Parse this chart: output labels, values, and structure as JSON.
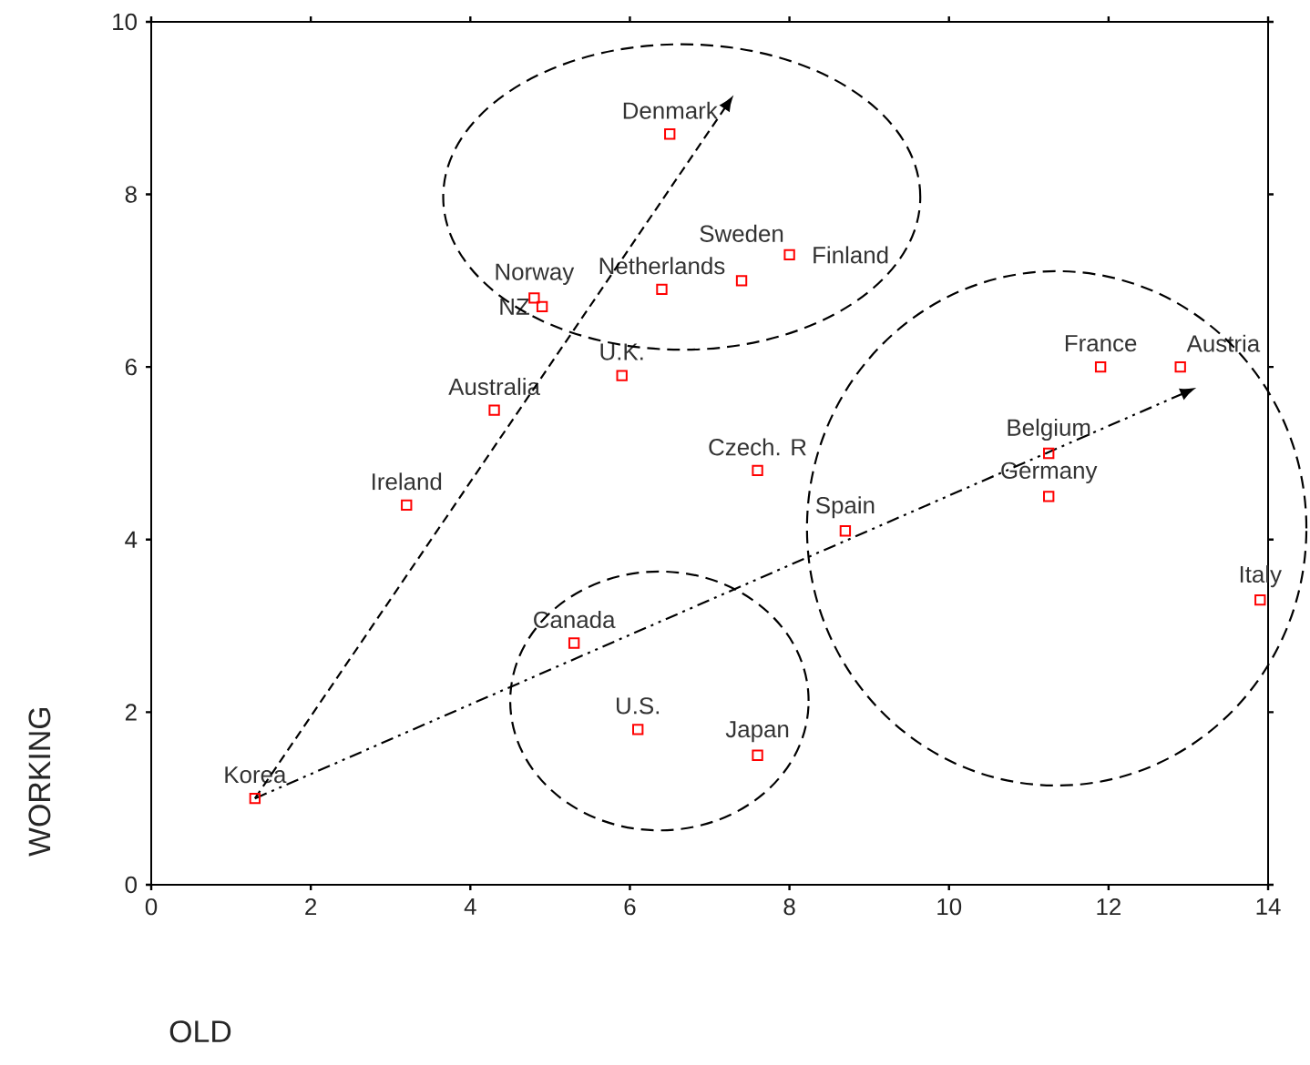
{
  "chart_data": {
    "type": "scatter",
    "xlabel": "OLD",
    "ylabel": "WORKING",
    "xlim": [
      0,
      14
    ],
    "ylim": [
      0,
      10
    ],
    "xticks": [
      0,
      2,
      4,
      6,
      8,
      10,
      12,
      14
    ],
    "yticks": [
      0,
      2,
      4,
      6,
      8,
      10
    ],
    "marker": "square",
    "series": [
      {
        "color": "#ff0000",
        "x": [
          6.5,
          4.8,
          4.9,
          6.4,
          7.4,
          8.0,
          5.9,
          4.3,
          3.2,
          7.6,
          8.7,
          11.25,
          11.25,
          11.9,
          12.9,
          13.9,
          5.3,
          6.1,
          7.6,
          1.3
        ],
        "values": [
          8.7,
          6.8,
          6.7,
          6.9,
          7.0,
          7.3,
          5.9,
          5.5,
          4.4,
          4.8,
          4.1,
          5.0,
          4.5,
          6.0,
          6.0,
          3.3,
          2.8,
          1.8,
          1.5,
          1.0
        ]
      }
    ],
    "annotations": [
      {
        "text": "Denmark",
        "x": 6.5,
        "y": 8.7
      },
      {
        "text": "Norway",
        "x": 4.8,
        "y": 6.8
      },
      {
        "text": "NZ",
        "x": 4.9,
        "y": 6.7
      },
      {
        "text": "Netherlands",
        "x": 6.4,
        "y": 6.9
      },
      {
        "text": "Sweden",
        "x": 7.4,
        "y": 7.0
      },
      {
        "text": "Finland",
        "x": 8.0,
        "y": 7.3
      },
      {
        "text": "U.K.",
        "x": 5.9,
        "y": 5.9
      },
      {
        "text": "Australia",
        "x": 4.3,
        "y": 5.5
      },
      {
        "text": "Ireland",
        "x": 3.2,
        "y": 4.4
      },
      {
        "text": "Czech. R",
        "x": 7.6,
        "y": 4.8
      },
      {
        "text": "Spain",
        "x": 8.7,
        "y": 4.1
      },
      {
        "text": "Belgium",
        "x": 11.25,
        "y": 5.0
      },
      {
        "text": "Germany",
        "x": 11.25,
        "y": 4.5
      },
      {
        "text": "France",
        "x": 11.9,
        "y": 6.0
      },
      {
        "text": "Austria",
        "x": 12.9,
        "y": 6.0
      },
      {
        "text": "Italy",
        "x": 13.9,
        "y": 3.3
      },
      {
        "text": "Canada",
        "x": 5.3,
        "y": 2.8
      },
      {
        "text": "U.S.",
        "x": 6.1,
        "y": 1.8
      },
      {
        "text": "Japan",
        "x": 7.6,
        "y": 1.5
      },
      {
        "text": "Korea",
        "x": 1.3,
        "y": 1.0
      }
    ]
  }
}
